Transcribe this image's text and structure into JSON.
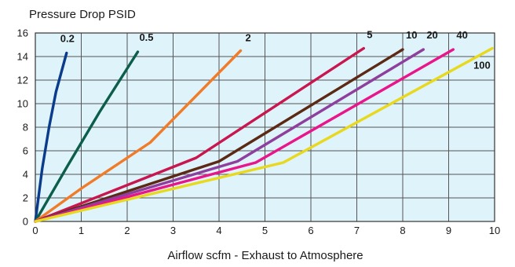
{
  "chart_data": {
    "type": "line",
    "title": "Pressure Drop PSID",
    "xlabel": "Airflow scfm - Exhaust to Atmosphere",
    "ylabel": "",
    "xlim": [
      0,
      10
    ],
    "ylim": [
      0,
      16
    ],
    "x_ticks": [
      "0",
      "1",
      "2",
      "3",
      "4",
      "5",
      "6",
      "7",
      "8",
      "9",
      "10"
    ],
    "y_ticks": [
      "0",
      "2",
      "4",
      "6",
      "8",
      "10",
      "12",
      "14",
      "16"
    ],
    "grid": true,
    "background_color": "#dff3fa",
    "grid_color": "#555555",
    "series": [
      {
        "name": "0.2",
        "color": "#0b3c8c",
        "x": [
          0,
          0.15,
          0.3,
          0.45,
          0.68
        ],
        "y": [
          0,
          4.5,
          8.0,
          11.0,
          14.3
        ]
      },
      {
        "name": "0.5",
        "color": "#0c5e4a",
        "x": [
          0,
          0.7,
          1.4,
          2.23
        ],
        "y": [
          0,
          4.7,
          9.3,
          14.4
        ]
      },
      {
        "name": "2",
        "color": "#f07c2a",
        "x": [
          0,
          1.0,
          2.5,
          4.47
        ],
        "y": [
          0,
          2.8,
          6.7,
          14.5
        ]
      },
      {
        "name": "5",
        "color": "#c8174e",
        "x": [
          0,
          3.5,
          7.15
        ],
        "y": [
          0,
          5.4,
          14.7
        ]
      },
      {
        "name": "10",
        "color": "#5c2a14",
        "x": [
          0,
          4.0,
          8.0
        ],
        "y": [
          0,
          5.1,
          14.6
        ]
      },
      {
        "name": "20",
        "color": "#8e3e9c",
        "x": [
          0,
          4.4,
          8.45
        ],
        "y": [
          0,
          5.1,
          14.6
        ]
      },
      {
        "name": "40",
        "color": "#e8168a",
        "x": [
          0,
          4.8,
          9.1
        ],
        "y": [
          0,
          5.0,
          14.6
        ]
      },
      {
        "name": "100",
        "color": "#e8d81e",
        "x": [
          0,
          5.4,
          9.95
        ],
        "y": [
          0,
          5.0,
          14.7
        ]
      }
    ]
  }
}
